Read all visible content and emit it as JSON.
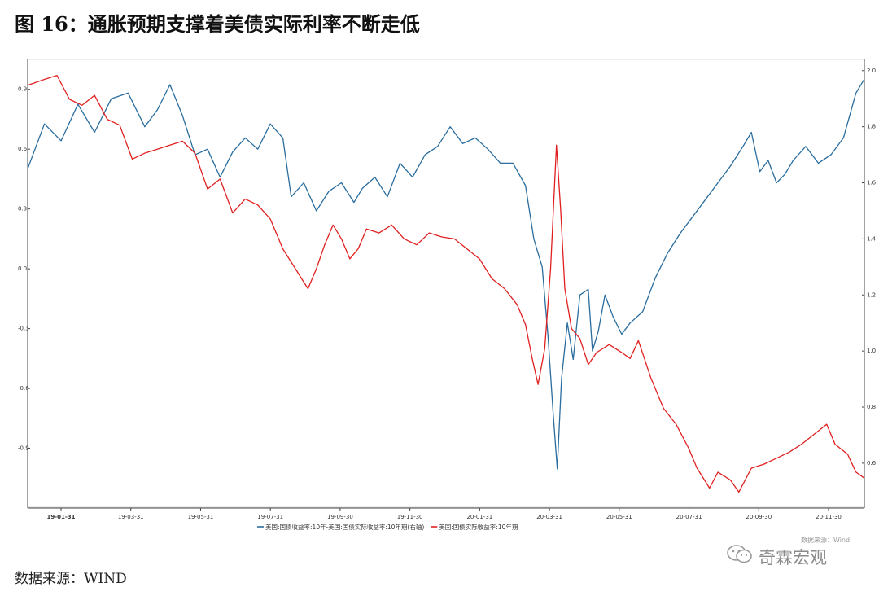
{
  "figure": {
    "title": "图 16：通胀预期支撑着美债实际利率不断走低",
    "source": "数据来源：WIND",
    "watermark_note": "数据来源：Wind",
    "watermark_brand": "奇霖宏观",
    "wechat_icon": "wechat-icon"
  },
  "chart_data": {
    "type": "line",
    "x_tick_labels": [
      "19-01-31",
      "19-03-31",
      "19-05-31",
      "19-07-31",
      "19-09-30",
      "19-11-30",
      "20-01-31",
      "20-03-31",
      "20-05-31",
      "20-07-31",
      "20-09-30",
      "20-11-30"
    ],
    "y_left": {
      "ticks": [
        0.9,
        0.6,
        0.3,
        0.0,
        -0.3,
        -0.6,
        -0.9
      ],
      "tick_labels": [
        "0.9",
        "0.6",
        "0.3",
        "0.0",
        "-0.3",
        "-0.6",
        "-0.9"
      ],
      "range": [
        -1.2,
        1.05
      ]
    },
    "y_right": {
      "ticks": [
        2.0,
        1.8,
        1.6,
        1.4,
        1.2,
        1.0,
        0.8,
        0.6
      ],
      "tick_labels": [
        "2.0",
        "1.8",
        "1.6",
        "1.4",
        "1.2",
        "1.0",
        "0.8",
        "0.6"
      ],
      "range": [
        0.44,
        2.04
      ]
    },
    "series": [
      {
        "name": "美国:国债收益率:10年-美国:国债实际收益率:10年期(右轴)",
        "axis": "right",
        "color": "#2a6d9e",
        "points": [
          [
            0.0,
            1.65
          ],
          [
            0.02,
            1.81
          ],
          [
            0.04,
            1.75
          ],
          [
            0.06,
            1.88
          ],
          [
            0.08,
            1.78
          ],
          [
            0.1,
            1.9
          ],
          [
            0.12,
            1.92
          ],
          [
            0.14,
            1.8
          ],
          [
            0.155,
            1.86
          ],
          [
            0.17,
            1.95
          ],
          [
            0.185,
            1.84
          ],
          [
            0.2,
            1.7
          ],
          [
            0.215,
            1.72
          ],
          [
            0.23,
            1.62
          ],
          [
            0.245,
            1.71
          ],
          [
            0.26,
            1.76
          ],
          [
            0.275,
            1.72
          ],
          [
            0.29,
            1.81
          ],
          [
            0.305,
            1.76
          ],
          [
            0.315,
            1.55
          ],
          [
            0.33,
            1.6
          ],
          [
            0.345,
            1.5
          ],
          [
            0.36,
            1.57
          ],
          [
            0.375,
            1.6
          ],
          [
            0.39,
            1.53
          ],
          [
            0.4,
            1.58
          ],
          [
            0.415,
            1.62
          ],
          [
            0.43,
            1.55
          ],
          [
            0.445,
            1.67
          ],
          [
            0.46,
            1.62
          ],
          [
            0.475,
            1.7
          ],
          [
            0.49,
            1.73
          ],
          [
            0.505,
            1.8
          ],
          [
            0.52,
            1.74
          ],
          [
            0.535,
            1.76
          ],
          [
            0.55,
            1.72
          ],
          [
            0.565,
            1.67
          ],
          [
            0.58,
            1.67
          ],
          [
            0.595,
            1.59
          ],
          [
            0.605,
            1.4
          ],
          [
            0.615,
            1.3
          ],
          [
            0.622,
            1.05
          ],
          [
            0.628,
            0.78
          ],
          [
            0.633,
            0.58
          ],
          [
            0.638,
            0.9
          ],
          [
            0.645,
            1.1
          ],
          [
            0.652,
            0.97
          ],
          [
            0.66,
            1.2
          ],
          [
            0.67,
            1.22
          ],
          [
            0.675,
            1.0
          ],
          [
            0.682,
            1.07
          ],
          [
            0.69,
            1.2
          ],
          [
            0.7,
            1.12
          ],
          [
            0.71,
            1.06
          ],
          [
            0.72,
            1.1
          ],
          [
            0.735,
            1.14
          ],
          [
            0.75,
            1.26
          ],
          [
            0.765,
            1.35
          ],
          [
            0.78,
            1.42
          ],
          [
            0.795,
            1.48
          ],
          [
            0.81,
            1.54
          ],
          [
            0.825,
            1.6
          ],
          [
            0.84,
            1.66
          ],
          [
            0.855,
            1.73
          ],
          [
            0.865,
            1.78
          ],
          [
            0.875,
            1.64
          ],
          [
            0.885,
            1.68
          ],
          [
            0.895,
            1.6
          ],
          [
            0.905,
            1.63
          ],
          [
            0.915,
            1.68
          ],
          [
            0.93,
            1.73
          ],
          [
            0.945,
            1.67
          ],
          [
            0.96,
            1.7
          ],
          [
            0.975,
            1.76
          ],
          [
            0.99,
            1.92
          ],
          [
            1.0,
            1.97
          ]
        ]
      },
      {
        "name": "美国:国债实际收益率:10年期",
        "axis": "left",
        "color": "#e02020",
        "points": [
          [
            0.0,
            0.92
          ],
          [
            0.02,
            0.95
          ],
          [
            0.035,
            0.97
          ],
          [
            0.05,
            0.85
          ],
          [
            0.065,
            0.82
          ],
          [
            0.08,
            0.87
          ],
          [
            0.095,
            0.75
          ],
          [
            0.11,
            0.72
          ],
          [
            0.125,
            0.55
          ],
          [
            0.14,
            0.58
          ],
          [
            0.155,
            0.6
          ],
          [
            0.17,
            0.62
          ],
          [
            0.185,
            0.64
          ],
          [
            0.2,
            0.58
          ],
          [
            0.215,
            0.4
          ],
          [
            0.23,
            0.45
          ],
          [
            0.245,
            0.28
          ],
          [
            0.26,
            0.35
          ],
          [
            0.275,
            0.32
          ],
          [
            0.29,
            0.25
          ],
          [
            0.305,
            0.1
          ],
          [
            0.32,
            0.0
          ],
          [
            0.335,
            -0.1
          ],
          [
            0.345,
            0.0
          ],
          [
            0.355,
            0.12
          ],
          [
            0.365,
            0.22
          ],
          [
            0.375,
            0.15
          ],
          [
            0.385,
            0.05
          ],
          [
            0.395,
            0.1
          ],
          [
            0.405,
            0.2
          ],
          [
            0.42,
            0.18
          ],
          [
            0.435,
            0.22
          ],
          [
            0.45,
            0.15
          ],
          [
            0.465,
            0.12
          ],
          [
            0.48,
            0.18
          ],
          [
            0.495,
            0.16
          ],
          [
            0.51,
            0.15
          ],
          [
            0.525,
            0.1
          ],
          [
            0.54,
            0.05
          ],
          [
            0.555,
            -0.05
          ],
          [
            0.57,
            -0.1
          ],
          [
            0.585,
            -0.18
          ],
          [
            0.595,
            -0.28
          ],
          [
            0.603,
            -0.45
          ],
          [
            0.61,
            -0.58
          ],
          [
            0.618,
            -0.4
          ],
          [
            0.625,
            0.0
          ],
          [
            0.632,
            0.62
          ],
          [
            0.637,
            0.3
          ],
          [
            0.642,
            -0.1
          ],
          [
            0.65,
            -0.3
          ],
          [
            0.66,
            -0.35
          ],
          [
            0.67,
            -0.48
          ],
          [
            0.68,
            -0.42
          ],
          [
            0.695,
            -0.38
          ],
          [
            0.71,
            -0.42
          ],
          [
            0.72,
            -0.45
          ],
          [
            0.73,
            -0.36
          ],
          [
            0.745,
            -0.55
          ],
          [
            0.76,
            -0.7
          ],
          [
            0.775,
            -0.78
          ],
          [
            0.79,
            -0.9
          ],
          [
            0.8,
            -1.0
          ],
          [
            0.815,
            -1.1
          ],
          [
            0.825,
            -1.02
          ],
          [
            0.84,
            -1.06
          ],
          [
            0.85,
            -1.12
          ],
          [
            0.865,
            -1.0
          ],
          [
            0.88,
            -0.98
          ],
          [
            0.895,
            -0.95
          ],
          [
            0.91,
            -0.92
          ],
          [
            0.925,
            -0.88
          ],
          [
            0.94,
            -0.83
          ],
          [
            0.955,
            -0.78
          ],
          [
            0.965,
            -0.88
          ],
          [
            0.98,
            -0.93
          ],
          [
            0.99,
            -1.02
          ],
          [
            1.0,
            -1.05
          ]
        ]
      }
    ],
    "legend_position": "bottom",
    "grid": false
  }
}
